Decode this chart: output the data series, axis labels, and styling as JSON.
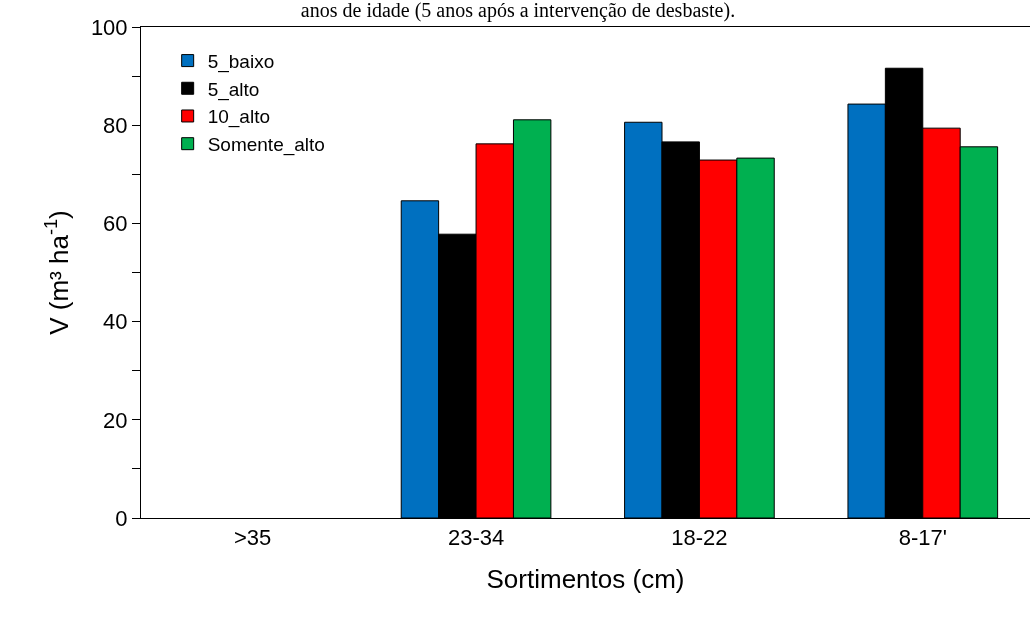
{
  "chart_data": {
    "type": "bar",
    "title": "anos de idade (5 anos após a intervenção de desbaste).",
    "xlabel": "Sortimentos (cm)",
    "ylabel": "V (m³ ha$^{-1}$)",
    "categories": [
      ">35",
      "23-34",
      "18-22",
      "8-17'"
    ],
    "series": [
      {
        "name": "5_baixo",
        "color": "#0070c0",
        "values": [
          null,
          64.6,
          80.6,
          84.3
        ]
      },
      {
        "name": "5_alto",
        "color": "#000000",
        "values": [
          null,
          57.8,
          76.6,
          91.6
        ]
      },
      {
        "name": "10_alto",
        "color": "#ff0000",
        "values": [
          null,
          76.2,
          72.9,
          79.4
        ]
      },
      {
        "name": "Somente_alto",
        "color": "#00b050",
        "values": [
          null,
          81.1,
          73.3,
          75.6
        ]
      }
    ],
    "ylim": [
      0,
      100
    ],
    "yticks": [
      0,
      {
        "value": 10,
        "label": null
      },
      20,
      {
        "value": 30,
        "label": null
      },
      40,
      {
        "value": 50,
        "label": null
      },
      60,
      {
        "value": 70,
        "label": null
      },
      80,
      {
        "value": 90,
        "label": null
      },
      100
    ],
    "grid": false,
    "legend": "top left"
  }
}
